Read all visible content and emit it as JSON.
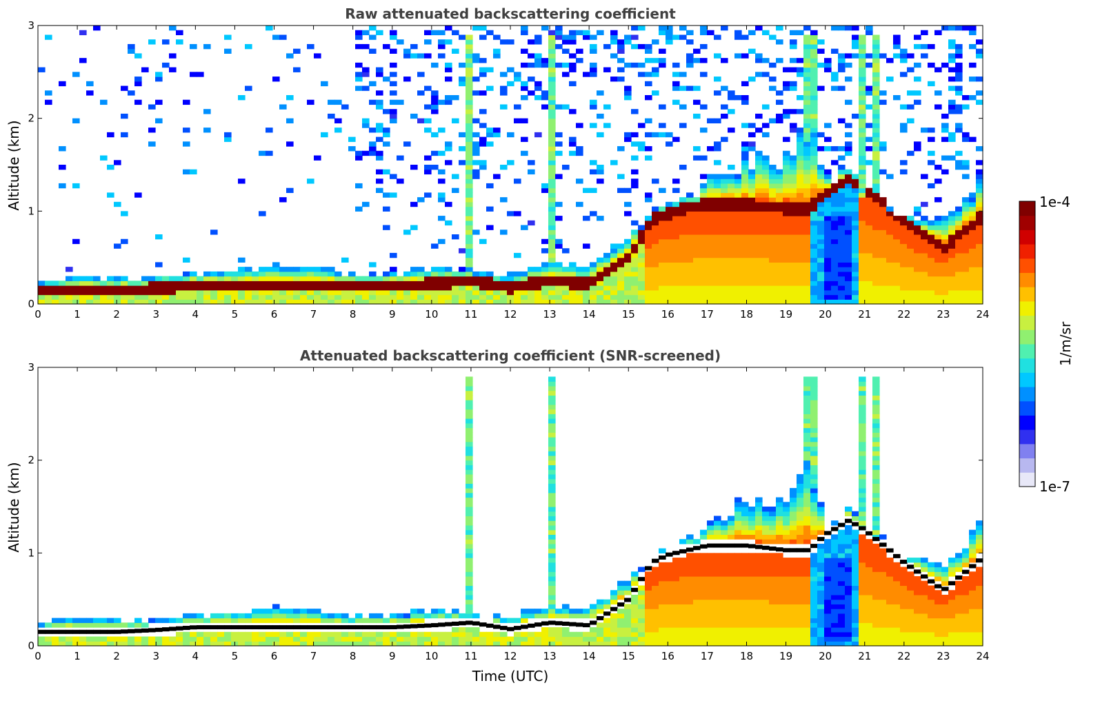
{
  "chart_data": [
    {
      "type": "heatmap",
      "title": "Raw attenuated backscattering coefficient",
      "xlabel": "",
      "ylabel": "Altitude (km)",
      "xlim": [
        0,
        24
      ],
      "ylim": [
        0,
        3
      ],
      "x_ticks": [
        "0",
        "1",
        "2",
        "3",
        "4",
        "5",
        "6",
        "7",
        "8",
        "9",
        "10",
        "11",
        "12",
        "13",
        "14",
        "15",
        "16",
        "17",
        "18",
        "19",
        "20",
        "21",
        "22",
        "23",
        "24"
      ],
      "y_ticks": [
        "0",
        "1",
        "2",
        "3"
      ],
      "screened": false,
      "boundary_layer_top_km": [
        [
          0,
          0.25
        ],
        [
          1,
          0.3
        ],
        [
          2,
          0.27
        ],
        [
          3,
          0.3
        ],
        [
          4,
          0.33
        ],
        [
          5,
          0.35
        ],
        [
          6,
          0.4
        ],
        [
          7,
          0.38
        ],
        [
          8,
          0.33
        ],
        [
          9,
          0.33
        ],
        [
          10,
          0.4
        ],
        [
          11,
          0.35
        ],
        [
          12,
          0.3
        ],
        [
          13,
          0.45
        ],
        [
          14,
          0.4
        ],
        [
          15,
          0.7
        ],
        [
          15.6,
          0.95
        ],
        [
          16,
          1.05
        ],
        [
          17,
          1.3
        ],
        [
          18,
          1.55
        ],
        [
          19,
          1.55
        ],
        [
          19.6,
          1.95
        ],
        [
          20,
          1.35
        ],
        [
          20.6,
          1.45
        ],
        [
          21,
          1.2
        ],
        [
          22,
          1.0
        ],
        [
          23,
          0.9
        ],
        [
          24,
          1.3
        ]
      ],
      "cloud_base_km": [
        [
          0,
          0.15
        ],
        [
          1,
          0.15
        ],
        [
          2,
          0.15
        ],
        [
          3,
          0.17
        ],
        [
          4,
          0.2
        ],
        [
          5,
          0.2
        ],
        [
          6,
          0.2
        ],
        [
          7,
          0.2
        ],
        [
          8,
          0.2
        ],
        [
          9,
          0.2
        ],
        [
          10,
          0.22
        ],
        [
          11,
          0.25
        ],
        [
          12,
          0.18
        ],
        [
          13,
          0.25
        ],
        [
          14,
          0.22
        ],
        [
          15,
          0.5
        ],
        [
          15.6,
          0.9
        ],
        [
          16,
          0.98
        ],
        [
          17,
          1.08
        ],
        [
          18,
          1.08
        ],
        [
          19,
          1.03
        ],
        [
          19.6,
          1.03
        ],
        [
          20,
          1.2
        ],
        [
          20.6,
          1.35
        ],
        [
          21,
          1.25
        ],
        [
          22,
          0.9
        ],
        [
          23,
          0.6
        ],
        [
          24,
          0.95
        ]
      ]
    },
    {
      "type": "heatmap",
      "title": "Attenuated backscattering coefficient (SNR-screened)",
      "xlabel": "Time (UTC)",
      "ylabel": "Altitude (km)",
      "xlim": [
        0,
        24
      ],
      "ylim": [
        0,
        3
      ],
      "x_ticks": [
        "0",
        "1",
        "2",
        "3",
        "4",
        "5",
        "6",
        "7",
        "8",
        "9",
        "10",
        "11",
        "12",
        "13",
        "14",
        "15",
        "16",
        "17",
        "18",
        "19",
        "20",
        "21",
        "22",
        "23",
        "24"
      ],
      "y_ticks": [
        "0",
        "1",
        "2",
        "3"
      ],
      "screened": true,
      "boundary_layer_top_km": [
        [
          0,
          0.25
        ],
        [
          1,
          0.3
        ],
        [
          2,
          0.27
        ],
        [
          3,
          0.3
        ],
        [
          4,
          0.33
        ],
        [
          5,
          0.35
        ],
        [
          6,
          0.4
        ],
        [
          7,
          0.38
        ],
        [
          8,
          0.33
        ],
        [
          9,
          0.33
        ],
        [
          10,
          0.4
        ],
        [
          11,
          0.35
        ],
        [
          12,
          0.3
        ],
        [
          13,
          0.45
        ],
        [
          14,
          0.4
        ],
        [
          15,
          0.7
        ],
        [
          15.6,
          0.95
        ],
        [
          16,
          1.05
        ],
        [
          17,
          1.3
        ],
        [
          18,
          1.55
        ],
        [
          19,
          1.55
        ],
        [
          19.6,
          1.95
        ],
        [
          20,
          1.35
        ],
        [
          20.6,
          1.45
        ],
        [
          21,
          1.2
        ],
        [
          22,
          1.0
        ],
        [
          23,
          0.9
        ],
        [
          24,
          1.3
        ]
      ],
      "cloud_base_km": [
        [
          0,
          0.15
        ],
        [
          1,
          0.15
        ],
        [
          2,
          0.15
        ],
        [
          3,
          0.17
        ],
        [
          4,
          0.2
        ],
        [
          5,
          0.2
        ],
        [
          6,
          0.2
        ],
        [
          7,
          0.2
        ],
        [
          8,
          0.2
        ],
        [
          9,
          0.2
        ],
        [
          10,
          0.22
        ],
        [
          11,
          0.25
        ],
        [
          12,
          0.18
        ],
        [
          13,
          0.25
        ],
        [
          14,
          0.22
        ],
        [
          15,
          0.5
        ],
        [
          15.6,
          0.9
        ],
        [
          16,
          0.98
        ],
        [
          17,
          1.08
        ],
        [
          18,
          1.08
        ],
        [
          19,
          1.03
        ],
        [
          19.6,
          1.03
        ],
        [
          20,
          1.2
        ],
        [
          20.6,
          1.35
        ],
        [
          21,
          1.25
        ],
        [
          22,
          0.9
        ],
        [
          23,
          0.6
        ],
        [
          24,
          0.95
        ]
      ]
    }
  ],
  "colorbar": {
    "label": "1/m/sr",
    "max_label": "1e-4",
    "min_label": "1e-7",
    "colors": [
      "#e8e8f8",
      "#b8b8f0",
      "#8080f0",
      "#3030f0",
      "#0000ff",
      "#0050ff",
      "#0090ff",
      "#00c8ff",
      "#20e0e0",
      "#50f0b0",
      "#90f070",
      "#c8f040",
      "#f0f000",
      "#ffc000",
      "#ff8c00",
      "#ff5000",
      "#f02000",
      "#d00000",
      "#a00000",
      "#800000"
    ]
  }
}
